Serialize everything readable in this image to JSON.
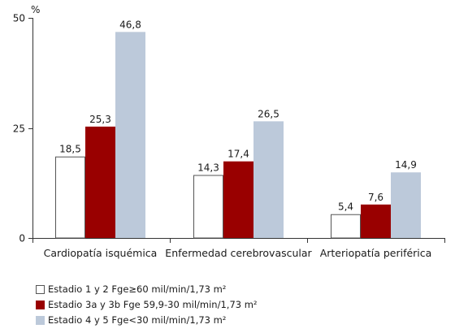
{
  "chart_data": {
    "type": "bar",
    "title": "",
    "xlabel": "",
    "ylabel": "%",
    "ylim": [
      0,
      50
    ],
    "yticks": [
      "0",
      "25",
      "50"
    ],
    "grid": false,
    "legend_position": "bottom-left",
    "categories": [
      "Cardiopatía isquémica",
      "Enfermedad cerebrovascular",
      "Arteriopatía periférica"
    ],
    "series": [
      {
        "name": "Estadio 1 y 2 Fge≥60 mil/min/1,73 m²",
        "values": [
          18.5,
          14.3,
          5.4
        ],
        "labels": [
          "18,5",
          "14,3",
          "5,4"
        ],
        "color": "#ffffff",
        "stroke": "#555555"
      },
      {
        "name": "Estadio 3a y 3b Fge 59,9-30 mil/min/1,73 m²",
        "values": [
          25.3,
          17.4,
          7.6
        ],
        "labels": [
          "25,3",
          "17,4",
          "7,6"
        ],
        "color": "#990000",
        "stroke": "#990000"
      },
      {
        "name": "Estadio 4 y 5 Fge<30 mil/min/1,73 m²",
        "values": [
          46.8,
          26.5,
          14.9
        ],
        "labels": [
          "46,8",
          "26,5",
          "14,9"
        ],
        "color": "#bcc9da",
        "stroke": "#bcc9da"
      }
    ]
  }
}
